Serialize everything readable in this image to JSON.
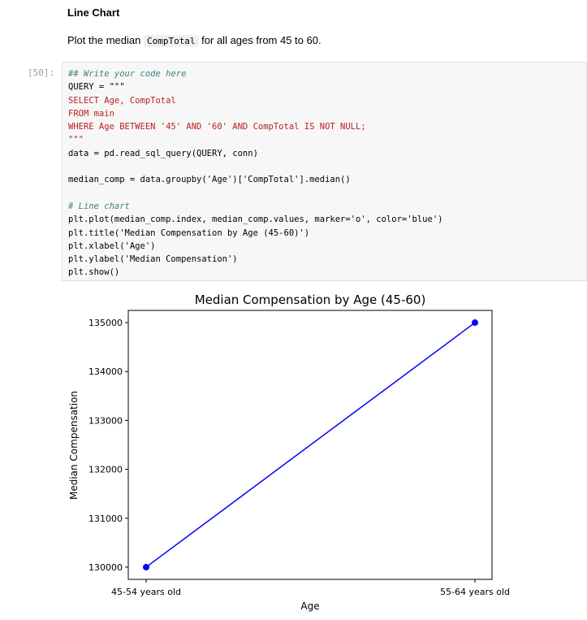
{
  "markdown": {
    "heading": "Line Chart",
    "text_before": "Plot the median ",
    "inline_code": "CompTotal",
    "text_after": " for all ages from 45 to 60."
  },
  "cell": {
    "prompt": "[50]:",
    "code": {
      "comment1": "## Write your code here",
      "query_assign": "QUERY = \"\"\"",
      "sql_select": "SELECT Age, CompTotal",
      "sql_from": "FROM main",
      "sql_where": "WHERE Age BETWEEN '45' AND '60' AND CompTotal IS NOT NULL;",
      "query_close": "\"\"\"",
      "data_line": "data = pd.read_sql_query(QUERY, conn)",
      "median_line": "median_comp = data.groupby('Age')['CompTotal'].median()",
      "comment2": "# Line chart",
      "plot_line": "plt.plot(median_comp.index, median_comp.values, marker='o', color='blue')",
      "title_line": "plt.title('Median Compensation by Age (45-60)')",
      "xlabel_line": "plt.xlabel('Age')",
      "ylabel_line": "plt.ylabel('Median Compensation')",
      "show_line": "plt.show()"
    }
  },
  "chart_data": {
    "type": "line",
    "title": "Median Compensation by Age (45-60)",
    "xlabel": "Age",
    "ylabel": "Median Compensation",
    "categories": [
      "45-54 years old",
      "55-64 years old"
    ],
    "series": [
      {
        "values": [
          130000,
          135000
        ],
        "color": "#0000ff",
        "marker": "o"
      }
    ],
    "yticks": [
      130000,
      131000,
      132000,
      133000,
      134000,
      135000
    ],
    "ylim": [
      129750,
      135250
    ],
    "grid": false
  }
}
